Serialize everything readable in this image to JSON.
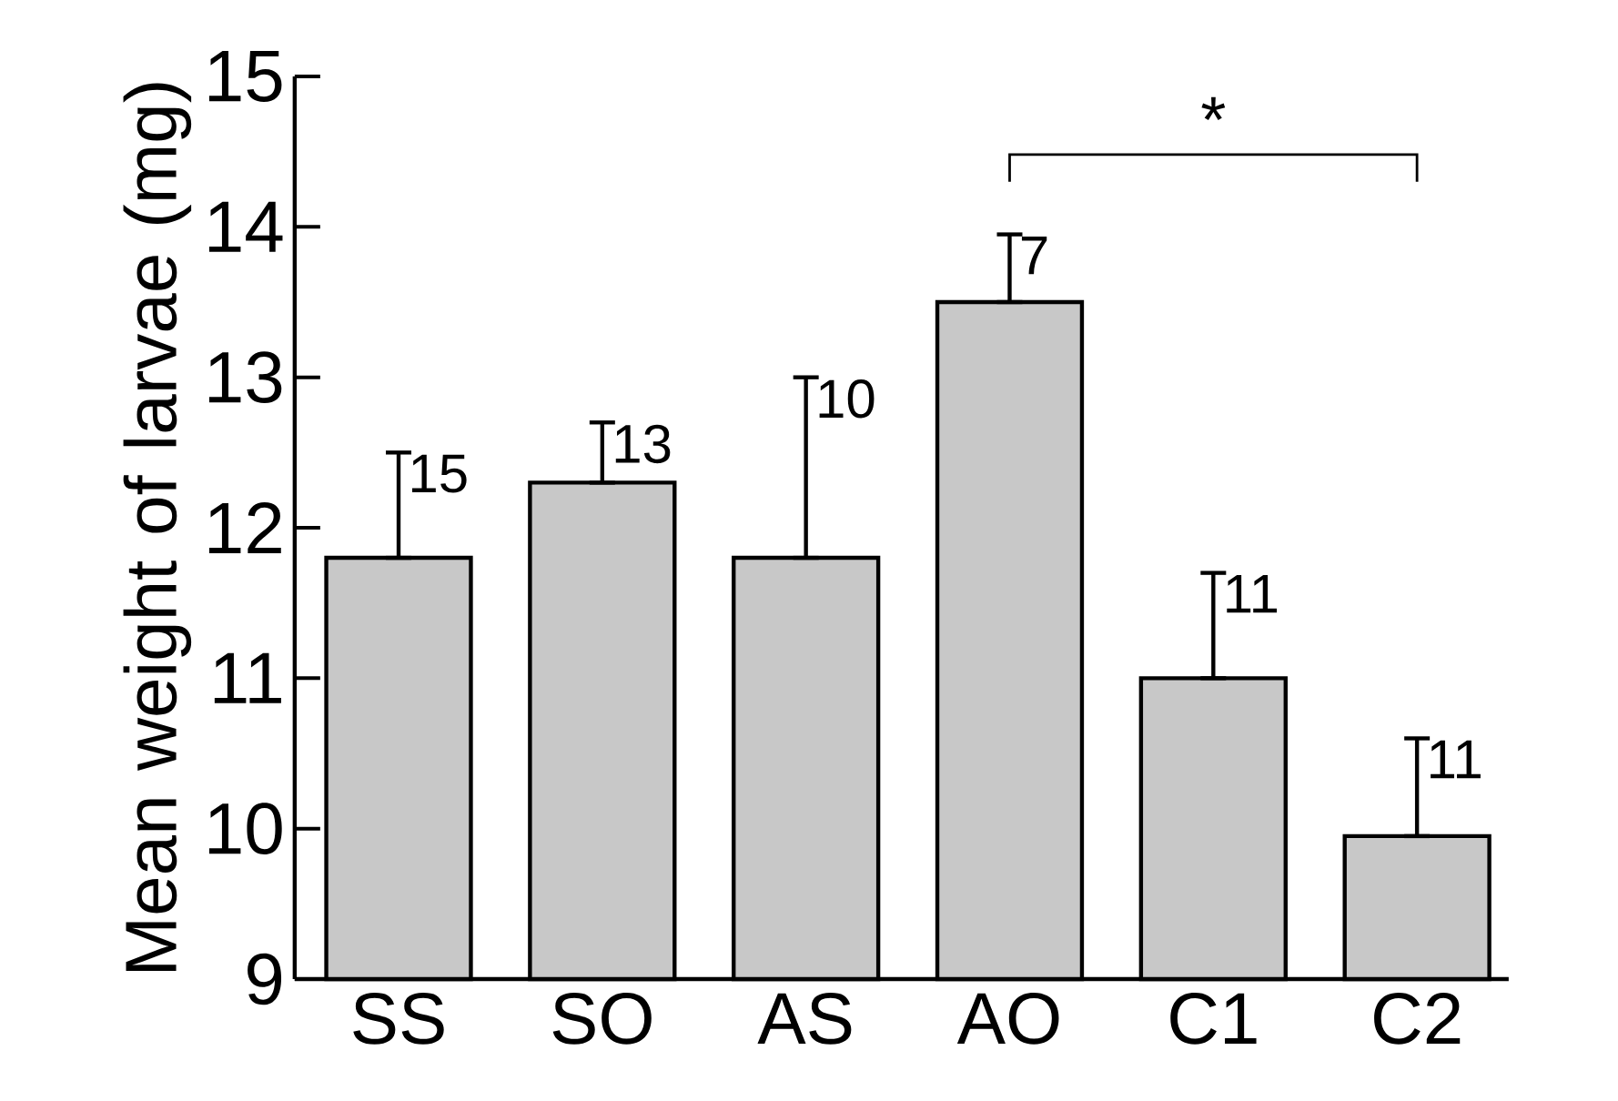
{
  "chart_data": {
    "type": "bar",
    "ylabel": "Mean weight of larvae (mg)",
    "categories": [
      "SS",
      "SO",
      "AS",
      "AO",
      "C1",
      "C2"
    ],
    "values": [
      11.8,
      12.3,
      11.8,
      13.5,
      11.0,
      9.95
    ],
    "errors": [
      [
        11.8,
        12.5
      ],
      [
        12.3,
        12.7
      ],
      [
        11.8,
        13.0
      ],
      [
        13.5,
        13.95
      ],
      [
        11.0,
        11.7
      ],
      [
        9.95,
        10.6
      ]
    ],
    "color": "#c8c8c8",
    "ylim": [
      9,
      15
    ],
    "yticks": [
      9,
      10,
      11,
      12,
      13,
      14,
      15
    ],
    "annotations": [
      "15",
      "13",
      "10",
      "7",
      "11",
      "11",
      "*"
    ]
  }
}
